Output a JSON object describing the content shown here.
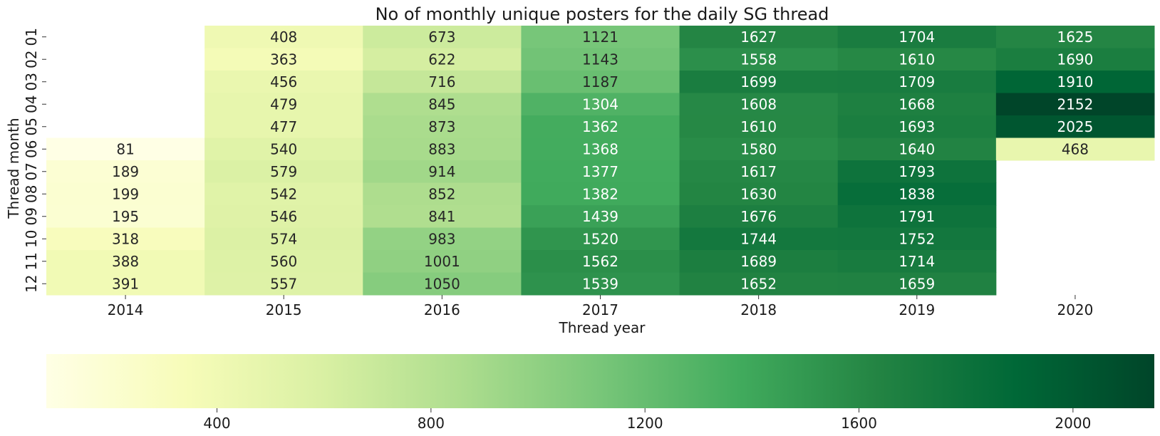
{
  "chart_data": {
    "type": "heatmap",
    "title": "No of monthly unique posters for the daily SG thread",
    "xlabel": "Thread year",
    "ylabel": "Thread month",
    "x_categories": [
      "2014",
      "2015",
      "2016",
      "2017",
      "2018",
      "2019",
      "2020"
    ],
    "y_categories": [
      "01",
      "02",
      "03",
      "04",
      "05",
      "06",
      "07",
      "08",
      "09",
      "10",
      "11",
      "12"
    ],
    "values": [
      [
        null,
        408,
        673,
        1121,
        1627,
        1704,
        1625
      ],
      [
        null,
        363,
        622,
        1143,
        1558,
        1610,
        1690
      ],
      [
        null,
        456,
        716,
        1187,
        1699,
        1709,
        1910
      ],
      [
        null,
        479,
        845,
        1304,
        1608,
        1668,
        2152
      ],
      [
        null,
        477,
        873,
        1362,
        1610,
        1693,
        2025
      ],
      [
        81,
        540,
        883,
        1368,
        1580,
        1640,
        468
      ],
      [
        189,
        579,
        914,
        1377,
        1617,
        1793,
        null
      ],
      [
        199,
        542,
        852,
        1382,
        1630,
        1838,
        null
      ],
      [
        195,
        546,
        841,
        1439,
        1676,
        1791,
        null
      ],
      [
        318,
        574,
        983,
        1520,
        1744,
        1752,
        null
      ],
      [
        388,
        560,
        1001,
        1562,
        1689,
        1714,
        null
      ],
      [
        391,
        557,
        1050,
        1539,
        1652,
        1659,
        null
      ]
    ],
    "colorbar": {
      "min": 81,
      "max": 2152,
      "ticks": [
        400,
        800,
        1200,
        1600,
        2000
      ],
      "orientation": "horizontal",
      "colormap": "YlGn",
      "colors": [
        "#ffffe5",
        "#f7fcb9",
        "#d9f0a3",
        "#addd8e",
        "#78c679",
        "#41ab5d",
        "#238443",
        "#006837",
        "#004529"
      ]
    },
    "grid": false
  }
}
